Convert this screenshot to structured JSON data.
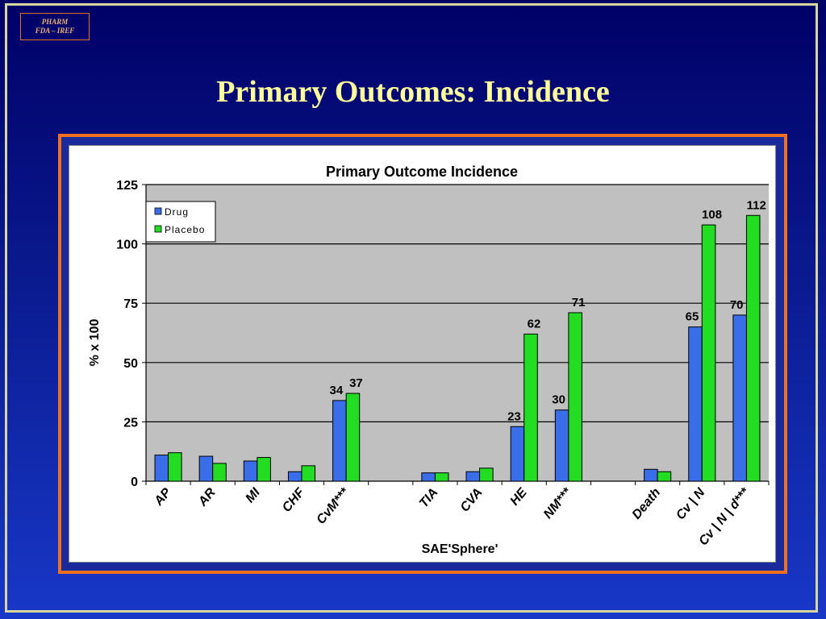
{
  "slide": {
    "badge_line1": "PHARM",
    "badge_line2": "FDA – IREF",
    "title": "Primary Outcomes: Incidence"
  },
  "colors": {
    "background": "#0a1a8f",
    "title": "#ffff99",
    "frame": "#f07020",
    "drug": "#3a6ee8",
    "placebo": "#22dd22",
    "plot_area": "#c0c0c0"
  },
  "chart_data": {
    "type": "bar",
    "title": "Primary Outcome Incidence",
    "xlabel": "SAE'Sphere'",
    "ylabel": "% x 100",
    "ylim": [
      0,
      125
    ],
    "yticks": [
      0,
      25,
      50,
      75,
      100,
      125
    ],
    "grid": true,
    "legend_position": "top-left",
    "categories": [
      "AP",
      "AR",
      "MI",
      "CHF",
      "CvM***",
      "",
      "TIA",
      "CVA",
      "HE",
      "NM***",
      "",
      "Death",
      "Cv | N",
      "Cv | N | d***"
    ],
    "series": [
      {
        "name": "Drug",
        "color": "#3a6ee8",
        "values": [
          11,
          10.5,
          8.5,
          4,
          34,
          null,
          3.5,
          4,
          23,
          30,
          null,
          5,
          65,
          70
        ]
      },
      {
        "name": "Placebo",
        "color": "#22dd22",
        "values": [
          12,
          7.5,
          10,
          6.5,
          37,
          null,
          3.5,
          5.5,
          62,
          71,
          null,
          4,
          108,
          112
        ]
      }
    ],
    "data_labels": [
      {
        "category_index": 4,
        "series": "Drug",
        "text": "34"
      },
      {
        "category_index": 4,
        "series": "Placebo",
        "text": "37"
      },
      {
        "category_index": 8,
        "series": "Drug",
        "text": "23"
      },
      {
        "category_index": 8,
        "series": "Placebo",
        "text": "62"
      },
      {
        "category_index": 9,
        "series": "Drug",
        "text": "30"
      },
      {
        "category_index": 9,
        "series": "Placebo",
        "text": "71"
      },
      {
        "category_index": 12,
        "series": "Drug",
        "text": "65"
      },
      {
        "category_index": 12,
        "series": "Placebo",
        "text": "108"
      },
      {
        "category_index": 13,
        "series": "Drug",
        "text": "70"
      },
      {
        "category_index": 13,
        "series": "Placebo",
        "text": "112"
      }
    ]
  }
}
